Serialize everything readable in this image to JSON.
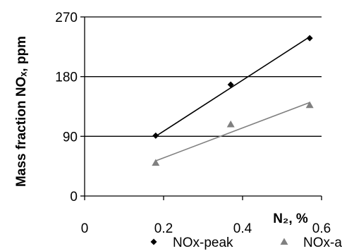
{
  "chart_data": {
    "type": "scatter",
    "xlabel": "N₂, %",
    "ylabel": "Mass fraction NOₓ, ppm",
    "xlim": [
      0,
      0.6
    ],
    "ylim": [
      0,
      270
    ],
    "x_ticks": [
      "0",
      "0.2",
      "0.4",
      "0.6"
    ],
    "y_ticks": [
      "0",
      "90",
      "180",
      "270"
    ],
    "grid": "horizontal",
    "legend_position": "bottom",
    "series": [
      {
        "name": "NOx-peak",
        "marker": "diamond",
        "color": "#000000",
        "trendline": true,
        "x": [
          0.18,
          0.37,
          0.57
        ],
        "y": [
          91,
          168,
          238
        ],
        "trend": [
          [
            0.18,
            90
          ],
          [
            0.57,
            240
          ]
        ]
      },
      {
        "name": "NOx-av",
        "marker": "triangle",
        "color": "#808080",
        "trendline": true,
        "x": [
          0.18,
          0.37,
          0.57
        ],
        "y": [
          50,
          108,
          137
        ],
        "trend": [
          [
            0.18,
            53
          ],
          [
            0.57,
            141
          ]
        ]
      }
    ]
  }
}
